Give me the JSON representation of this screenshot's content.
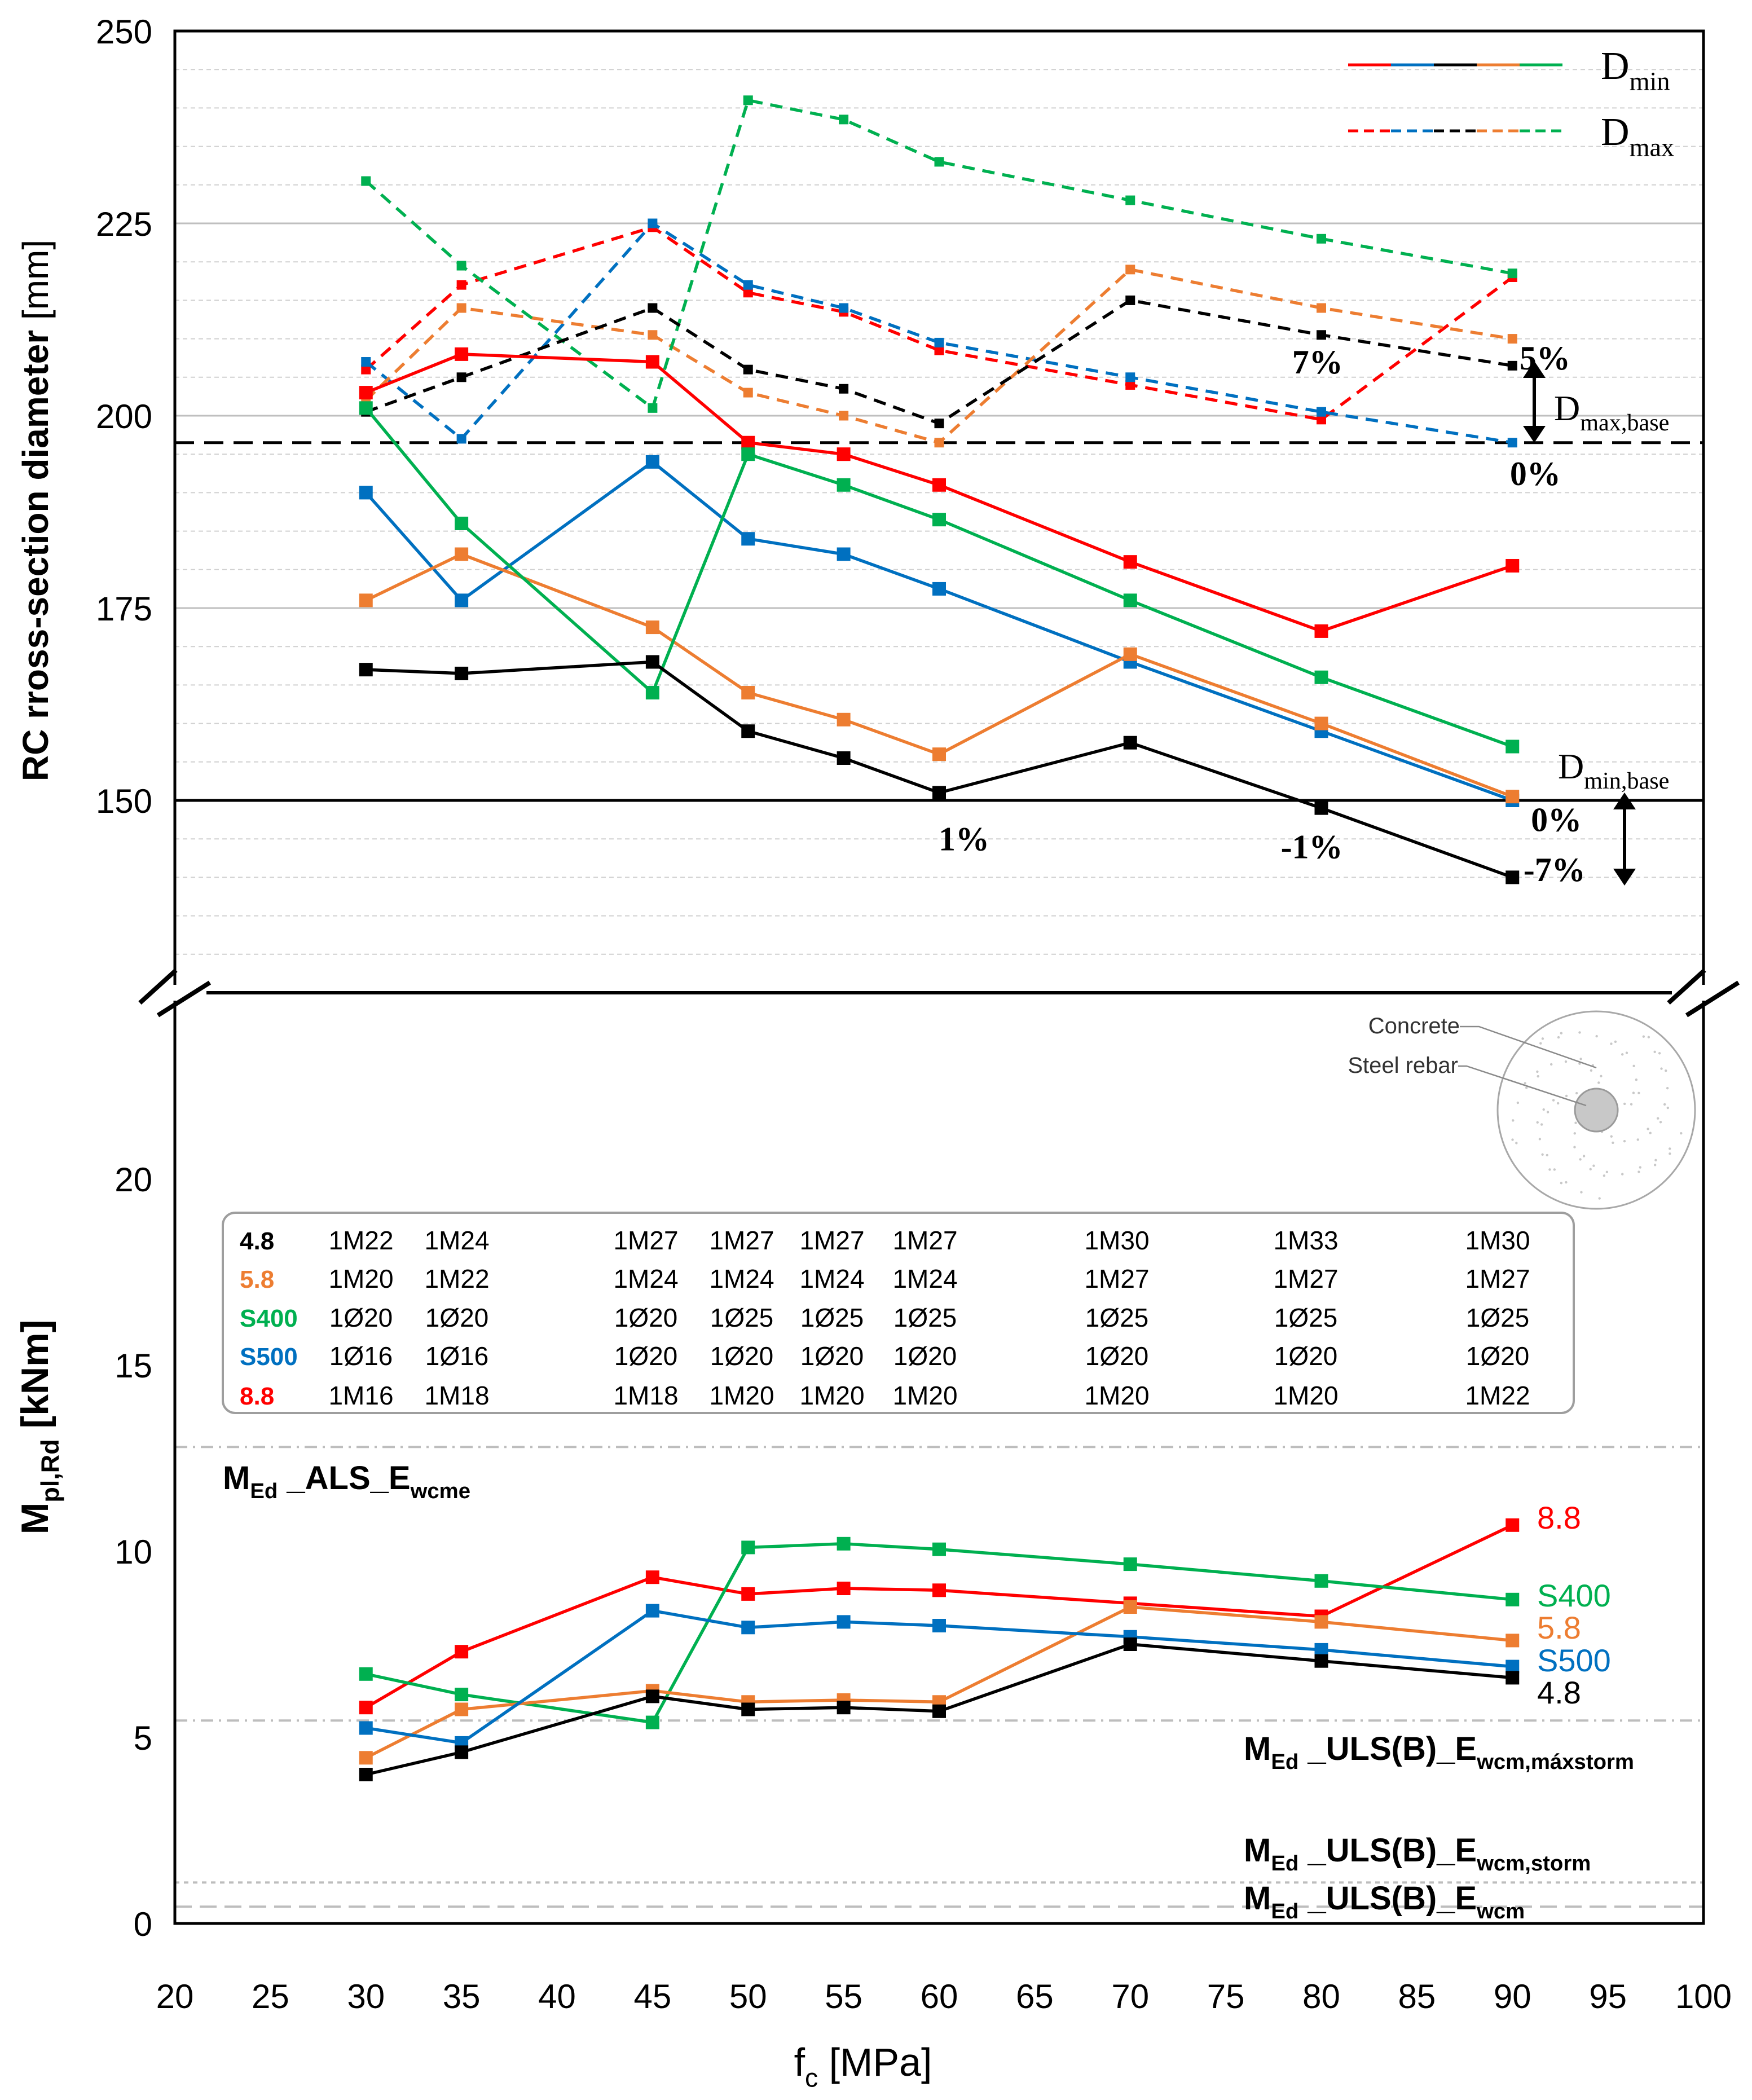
{
  "chart_data": {
    "type": "line",
    "x": [
      30,
      35,
      45,
      50,
      55,
      60,
      70,
      80,
      90
    ],
    "x_ticks": [
      20,
      25,
      30,
      35,
      40,
      45,
      50,
      55,
      60,
      65,
      70,
      75,
      80,
      85,
      90,
      95,
      100
    ],
    "xlim": [
      20,
      100
    ],
    "xlabel_main": "f",
    "xlabel_sub": "c",
    "xlabel_unit": " [MPa]",
    "colors": {
      "4.8": "#000000",
      "5.8": "#ED7D31",
      "S400": "#00B050",
      "S500": "#0070C0",
      "8.8": "#FF0000"
    },
    "top_panel": {
      "ylabel": "RC rross-section diameter",
      "ylabel_unit": " [mm]",
      "ylim": [
        125,
        250
      ],
      "y_ticks": [
        150,
        175,
        200,
        225,
        250
      ],
      "dmin_series": [
        {
          "name": "8.8",
          "values": [
            203,
            208,
            207,
            196.5,
            195,
            191,
            181,
            172,
            180.5
          ]
        },
        {
          "name": "S500",
          "values": [
            190,
            176,
            194,
            184,
            182,
            177.5,
            168,
            159,
            150
          ]
        },
        {
          "name": "5.8",
          "values": [
            176,
            182,
            172.5,
            164,
            160.5,
            156,
            169,
            160,
            150.5
          ]
        },
        {
          "name": "S400",
          "values": [
            201,
            186,
            164,
            195,
            191,
            186.5,
            176,
            166,
            157
          ]
        },
        {
          "name": "4.8",
          "values": [
            167,
            166.5,
            168,
            159,
            155.5,
            151,
            157.5,
            149,
            140
          ]
        }
      ],
      "dmax_series": [
        {
          "name": "8.8",
          "values": [
            206,
            217,
            224.5,
            216,
            213.5,
            208.5,
            204,
            199.5,
            218
          ]
        },
        {
          "name": "S500",
          "values": [
            207,
            197,
            225,
            217,
            214,
            209.5,
            205,
            200.5,
            196.5
          ]
        },
        {
          "name": "5.8",
          "values": [
            202,
            214,
            210.5,
            203,
            200,
            196.5,
            219,
            214,
            210
          ]
        },
        {
          "name": "S400",
          "values": [
            230.5,
            219.5,
            201,
            241,
            238.5,
            233,
            228,
            223,
            218.5
          ]
        },
        {
          "name": "4.8",
          "values": [
            200.5,
            205,
            214,
            206,
            203.5,
            199,
            215,
            210.5,
            206.5
          ]
        }
      ],
      "dmax_base": 196.5,
      "dmin_base": 150,
      "legend_dmin_main": "D",
      "legend_dmin_sub": "min",
      "legend_dmax_main": "D",
      "legend_dmax_sub": "max",
      "label_dmax_base_main": "D",
      "label_dmax_base_sub": "max,base",
      "label_dmin_base_main": "D",
      "label_dmin_base_sub": "min,base",
      "annotations": [
        {
          "text": "5%",
          "x": 91.7,
          "y": 206
        },
        {
          "text": "0%",
          "x": 91.2,
          "y": 191
        },
        {
          "text": "7%",
          "x": 79.8,
          "y": 205.5
        },
        {
          "text": "1%",
          "x": 61.3,
          "y": 143.5
        },
        {
          "text": "-1%",
          "x": 79.5,
          "y": 142.5
        },
        {
          "text": "0%",
          "x": 92.3,
          "y": 146
        },
        {
          "text": "-7%",
          "x": 92.2,
          "y": 139.5
        }
      ]
    },
    "bottom_panel": {
      "ylabel_main": "M",
      "ylabel_sub": "pl,Rd",
      "ylabel_unit": " [kNm]",
      "ylim": [
        0,
        25
      ],
      "y_ticks": [
        0,
        5,
        10,
        15,
        20
      ],
      "series": [
        {
          "name": "8.8",
          "values": [
            5.8,
            7.3,
            9.3,
            8.85,
            9.0,
            8.95,
            8.6,
            8.25,
            10.7
          ]
        },
        {
          "name": "S400",
          "values": [
            6.7,
            6.15,
            5.4,
            10.1,
            10.2,
            10.05,
            9.65,
            9.2,
            8.7
          ]
        },
        {
          "name": "5.8",
          "values": [
            4.45,
            5.75,
            6.25,
            5.95,
            6.0,
            5.95,
            8.5,
            8.1,
            7.6
          ]
        },
        {
          "name": "S500",
          "values": [
            5.25,
            4.85,
            8.4,
            7.95,
            8.1,
            8.0,
            7.7,
            7.35,
            6.9
          ]
        },
        {
          "name": "4.8",
          "values": [
            4.0,
            4.6,
            6.1,
            5.75,
            5.8,
            5.7,
            7.5,
            7.05,
            6.6
          ]
        }
      ],
      "series_end_labels": [
        "8.8",
        "S400",
        "5.8",
        "S500",
        "4.8"
      ],
      "reference_lines": [
        {
          "label_main": "M",
          "label_sub": "Ed",
          "label_rest": " _ALS_E",
          "label_sub2": "wcme",
          "value": 12.8
        },
        {
          "label_main": "M",
          "label_sub": "Ed",
          "label_rest": " _ULS(B)_E",
          "label_sub2": "wcm,máxstorm",
          "value": 5.45
        },
        {
          "label_main": "M",
          "label_sub": "Ed",
          "label_rest": " _ULS(B)_E",
          "label_sub2": "wcm,storm",
          "value": 1.1
        },
        {
          "label_main": "M",
          "label_sub": "Ed",
          "label_rest": " _ULS(B)_E",
          "label_sub2": "wcm",
          "value": 0.45
        }
      ]
    },
    "rebar_table": {
      "rows": [
        {
          "grade": "4.8",
          "cells": [
            "1M22",
            "1M24",
            "1M27",
            "1M27",
            "1M27",
            "1M27",
            "1M30",
            "1M33",
            "1M30"
          ]
        },
        {
          "grade": "5.8",
          "cells": [
            "1M20",
            "1M22",
            "1M24",
            "1M24",
            "1M24",
            "1M24",
            "1M27",
            "1M27",
            "1M27"
          ]
        },
        {
          "grade": "S400",
          "cells": [
            "1Ø20",
            "1Ø20",
            "1Ø20",
            "1Ø25",
            "1Ø25",
            "1Ø25",
            "1Ø25",
            "1Ø25",
            "1Ø25"
          ]
        },
        {
          "grade": "S500",
          "cells": [
            "1Ø16",
            "1Ø16",
            "1Ø20",
            "1Ø20",
            "1Ø20",
            "1Ø20",
            "1Ø20",
            "1Ø20",
            "1Ø20"
          ]
        },
        {
          "grade": "8.8",
          "cells": [
            "1M16",
            "1M18",
            "1M18",
            "1M20",
            "1M20",
            "1M20",
            "1M20",
            "1M20",
            "1M22"
          ]
        }
      ]
    },
    "inset": {
      "concrete_label": "Concrete",
      "rebar_label": "Steel rebar"
    }
  }
}
